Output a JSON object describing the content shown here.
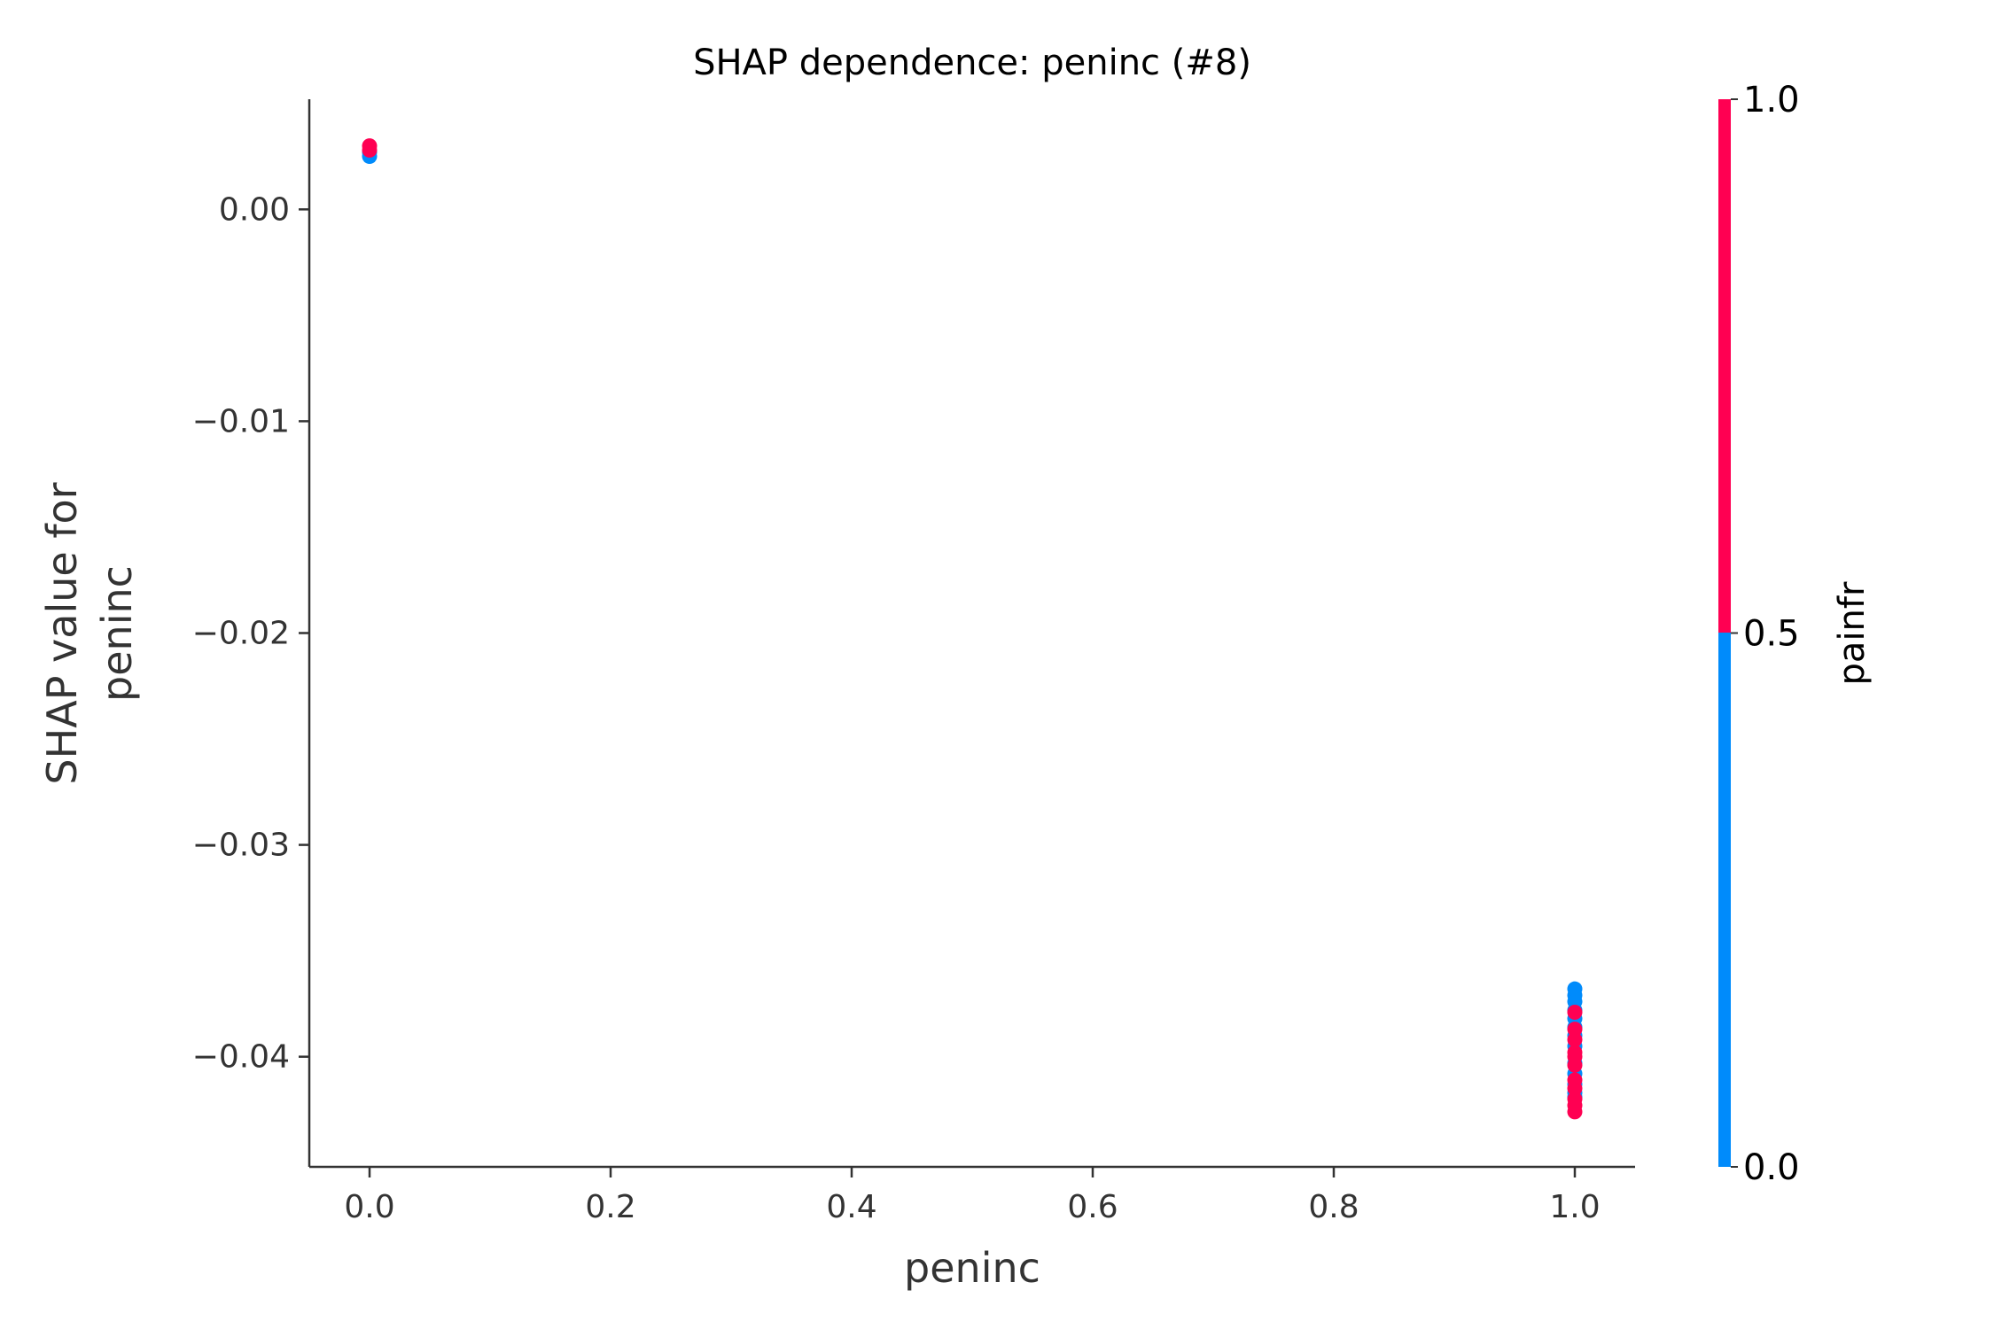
{
  "chart_data": {
    "type": "scatter",
    "title": "SHAP dependence: peninc (#8)",
    "xlabel": "peninc",
    "ylabel_lines": [
      "SHAP value for",
      "peninc"
    ],
    "xlim": [
      -0.05,
      1.05
    ],
    "ylim": [
      -0.0452,
      0.0052
    ],
    "xticks": [
      0.0,
      0.2,
      0.4,
      0.6,
      0.8,
      1.0
    ],
    "xtick_labels": [
      "0.0",
      "0.2",
      "0.4",
      "0.6",
      "0.8",
      "1.0"
    ],
    "yticks": [
      0.0,
      -0.01,
      -0.02,
      -0.03,
      -0.04
    ],
    "ytick_labels": [
      "0.00",
      "−0.01",
      "−0.02",
      "−0.03",
      "−0.04"
    ],
    "colorbar": {
      "label": "painfr",
      "range": [
        0.0,
        1.0
      ],
      "ticks": [
        0.0,
        0.5,
        1.0
      ],
      "tick_labels": [
        "0.0",
        "0.5",
        "1.0"
      ],
      "low_color": "#008bfb",
      "high_color": "#ff0052"
    },
    "series": [
      {
        "name": "painfr = 0",
        "color": "#008bfb",
        "points": [
          {
            "x": 0.0,
            "y": 0.0025
          },
          {
            "x": 0.0,
            "y": 0.0027
          },
          {
            "x": 1.0,
            "y": -0.0368
          },
          {
            "x": 1.0,
            "y": -0.0371
          },
          {
            "x": 1.0,
            "y": -0.0374
          },
          {
            "x": 1.0,
            "y": -0.0378
          },
          {
            "x": 1.0,
            "y": -0.0382
          },
          {
            "x": 1.0,
            "y": -0.0386
          },
          {
            "x": 1.0,
            "y": -0.039
          },
          {
            "x": 1.0,
            "y": -0.0395
          },
          {
            "x": 1.0,
            "y": -0.0403
          },
          {
            "x": 1.0,
            "y": -0.0408
          },
          {
            "x": 1.0,
            "y": -0.0413
          },
          {
            "x": 1.0,
            "y": -0.0417
          },
          {
            "x": 1.0,
            "y": -0.0419
          }
        ]
      },
      {
        "name": "painfr = 1",
        "color": "#ff0052",
        "points": [
          {
            "x": 0.0,
            "y": 0.003
          },
          {
            "x": 0.0,
            "y": 0.0028
          },
          {
            "x": 1.0,
            "y": -0.0379
          },
          {
            "x": 1.0,
            "y": -0.0387
          },
          {
            "x": 1.0,
            "y": -0.0392
          },
          {
            "x": 1.0,
            "y": -0.0398
          },
          {
            "x": 1.0,
            "y": -0.04
          },
          {
            "x": 1.0,
            "y": -0.0404
          },
          {
            "x": 1.0,
            "y": -0.0411
          },
          {
            "x": 1.0,
            "y": -0.0415
          },
          {
            "x": 1.0,
            "y": -0.042
          },
          {
            "x": 1.0,
            "y": -0.0423
          },
          {
            "x": 1.0,
            "y": -0.0426
          }
        ]
      }
    ]
  }
}
